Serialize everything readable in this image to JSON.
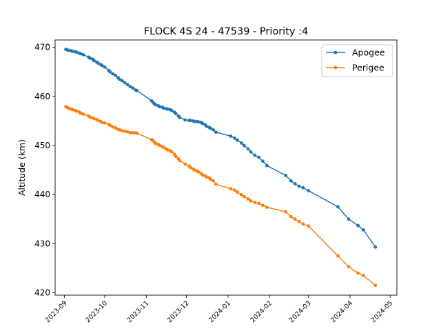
{
  "chart_data": {
    "type": "line",
    "title": "FLOCK 4S 24 - 47539 - Priority :4",
    "xlabel": "",
    "ylabel": "Altitude (km)",
    "x_tick_labels": [
      "2023-09",
      "2023-10",
      "2023-11",
      "2023-12",
      "2024-01",
      "2024-02",
      "2024-03",
      "2024-04",
      "2024-05"
    ],
    "x_ticks": [
      "2023-09-01",
      "2023-10-01",
      "2023-11-01",
      "2023-12-01",
      "2024-01-01",
      "2024-02-01",
      "2024-03-01",
      "2024-04-01",
      "2024-05-01"
    ],
    "xlim": [
      "2023-08-25",
      "2024-05-06"
    ],
    "ylim": [
      419.5,
      471.5
    ],
    "y_ticks": [
      420,
      430,
      440,
      450,
      460,
      470
    ],
    "y_tick_labels": [
      "420",
      "430",
      "440",
      "450",
      "460",
      "470"
    ],
    "legend_position": "top-right",
    "grid": false,
    "series": [
      {
        "name": "Apogee",
        "color": "#1f77b4",
        "marker": "circle",
        "x": [
          "2023-09-02",
          "2023-09-03",
          "2023-09-04",
          "2023-09-06",
          "2023-09-07",
          "2023-09-09",
          "2023-09-10",
          "2023-09-12",
          "2023-09-13",
          "2023-09-15",
          "2023-09-19",
          "2023-09-20",
          "2023-09-22",
          "2023-09-23",
          "2023-09-25",
          "2023-09-26",
          "2023-09-28",
          "2023-09-29",
          "2023-10-01",
          "2023-10-04",
          "2023-10-05",
          "2023-10-07",
          "2023-10-09",
          "2023-10-11",
          "2023-10-12",
          "2023-10-14",
          "2023-10-16",
          "2023-10-18",
          "2023-10-20",
          "2023-10-22",
          "2023-10-24",
          "2023-10-25",
          "2023-11-05",
          "2023-11-06",
          "2023-11-07",
          "2023-11-08",
          "2023-11-10",
          "2023-11-11",
          "2023-11-13",
          "2023-11-14",
          "2023-11-16",
          "2023-11-17",
          "2023-11-19",
          "2023-11-20",
          "2023-11-22",
          "2023-11-23",
          "2023-11-25",
          "2023-11-26",
          "2023-11-30",
          "2023-12-03",
          "2023-12-04",
          "2023-12-06",
          "2023-12-07",
          "2023-12-09",
          "2023-12-10",
          "2023-12-12",
          "2023-12-13",
          "2023-12-15",
          "2023-12-16",
          "2023-12-18",
          "2023-12-19",
          "2023-12-21",
          "2023-12-23",
          "2024-01-03",
          "2024-01-06",
          "2024-01-08",
          "2024-01-11",
          "2024-01-13",
          "2024-01-16",
          "2024-01-18",
          "2024-01-21",
          "2024-01-24",
          "2024-01-27",
          "2024-01-30",
          "2024-02-13",
          "2024-02-17",
          "2024-02-20",
          "2024-02-23",
          "2024-02-26",
          "2024-03-01",
          "2024-03-23",
          "2024-03-31",
          "2024-04-07",
          "2024-04-11",
          "2024-04-20"
        ],
        "y": [
          469.6,
          469.5,
          469.4,
          469.3,
          469.2,
          469.1,
          469.0,
          468.8,
          468.7,
          468.5,
          468.0,
          467.8,
          467.6,
          467.3,
          467.0,
          466.8,
          466.5,
          466.3,
          466.0,
          465.3,
          465.0,
          464.6,
          464.3,
          463.8,
          463.5,
          463.2,
          462.8,
          462.4,
          462.0,
          461.7,
          461.3,
          461.2,
          459.1,
          458.8,
          458.5,
          458.3,
          458.1,
          457.9,
          457.8,
          457.6,
          457.5,
          457.4,
          457.3,
          457.1,
          456.8,
          456.5,
          456.0,
          455.7,
          455.2,
          455.1,
          455.1,
          455.0,
          454.9,
          454.9,
          454.8,
          454.7,
          454.5,
          454.2,
          453.9,
          453.7,
          453.5,
          453.2,
          452.7,
          451.9,
          451.5,
          451.1,
          450.5,
          450.0,
          449.3,
          448.7,
          448.0,
          447.6,
          446.8,
          445.9,
          443.9,
          442.8,
          442.2,
          441.7,
          441.4,
          440.8,
          437.5,
          435.0,
          433.7,
          432.8,
          429.3
        ]
      },
      {
        "name": "Perigee",
        "color": "#ff7f0e",
        "marker": "circle",
        "x": [
          "2023-09-02",
          "2023-09-03",
          "2023-09-04",
          "2023-09-06",
          "2023-09-07",
          "2023-09-09",
          "2023-09-10",
          "2023-09-12",
          "2023-09-13",
          "2023-09-15",
          "2023-09-19",
          "2023-09-20",
          "2023-09-22",
          "2023-09-23",
          "2023-09-25",
          "2023-09-26",
          "2023-09-28",
          "2023-09-29",
          "2023-10-01",
          "2023-10-04",
          "2023-10-05",
          "2023-10-07",
          "2023-10-09",
          "2023-10-11",
          "2023-10-12",
          "2023-10-14",
          "2023-10-16",
          "2023-10-18",
          "2023-10-20",
          "2023-10-22",
          "2023-10-24",
          "2023-10-25",
          "2023-11-05",
          "2023-11-06",
          "2023-11-07",
          "2023-11-08",
          "2023-11-10",
          "2023-11-11",
          "2023-11-13",
          "2023-11-14",
          "2023-11-16",
          "2023-11-17",
          "2023-11-19",
          "2023-11-20",
          "2023-11-22",
          "2023-11-23",
          "2023-11-25",
          "2023-11-26",
          "2023-11-30",
          "2023-12-03",
          "2023-12-04",
          "2023-12-06",
          "2023-12-07",
          "2023-12-09",
          "2023-12-10",
          "2023-12-12",
          "2023-12-13",
          "2023-12-15",
          "2023-12-16",
          "2023-12-18",
          "2023-12-19",
          "2023-12-21",
          "2023-12-23",
          "2024-01-03",
          "2024-01-06",
          "2024-01-08",
          "2024-01-11",
          "2024-01-13",
          "2024-01-16",
          "2024-01-18",
          "2024-01-21",
          "2024-01-24",
          "2024-01-27",
          "2024-01-30",
          "2024-02-13",
          "2024-02-17",
          "2024-02-20",
          "2024-02-23",
          "2024-02-26",
          "2024-03-01",
          "2024-03-23",
          "2024-03-31",
          "2024-04-07",
          "2024-04-11",
          "2024-04-20"
        ],
        "y": [
          457.9,
          457.8,
          457.6,
          457.4,
          457.3,
          457.1,
          457.0,
          456.8,
          456.6,
          456.4,
          456.0,
          455.8,
          455.6,
          455.5,
          455.3,
          455.1,
          454.9,
          454.7,
          454.6,
          454.3,
          454.1,
          453.8,
          453.6,
          453.3,
          453.2,
          453.0,
          452.9,
          452.8,
          452.6,
          452.6,
          452.6,
          452.5,
          451.2,
          451.0,
          450.7,
          450.4,
          450.2,
          450.0,
          449.8,
          449.6,
          449.3,
          449.1,
          448.9,
          448.7,
          448.2,
          447.8,
          447.3,
          446.9,
          446.2,
          445.8,
          445.5,
          445.2,
          445.0,
          444.8,
          444.6,
          444.3,
          444.0,
          443.8,
          443.6,
          443.4,
          443.1,
          442.8,
          442.1,
          441.2,
          440.9,
          440.5,
          440.0,
          439.6,
          439.1,
          438.7,
          438.4,
          438.2,
          437.8,
          437.4,
          436.5,
          435.5,
          435.0,
          434.5,
          434.0,
          433.6,
          427.5,
          425.3,
          424.0,
          423.5,
          421.5
        ]
      }
    ]
  }
}
